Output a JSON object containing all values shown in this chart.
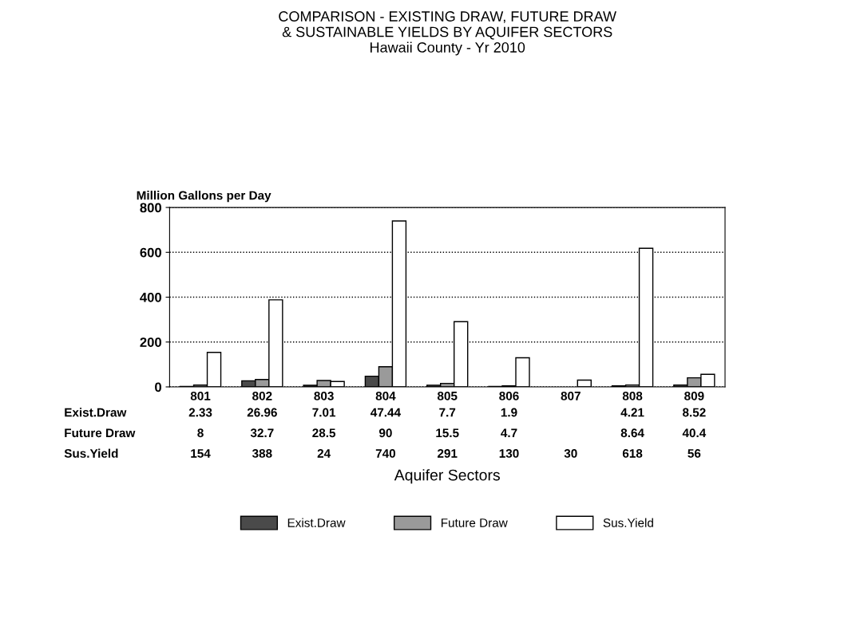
{
  "chart_data": {
    "type": "bar",
    "title": "COMPARISON - EXISTING DRAW, FUTURE DRAW\n& SUSTAINABLE YIELDS BY AQUIFER SECTORS",
    "subtitle": "Hawaii County - Yr 2010",
    "ylabel": "Million Gallons per Day",
    "xlabel": "Aquifer Sectors",
    "categories": [
      "801",
      "802",
      "803",
      "804",
      "805",
      "806",
      "807",
      "808",
      "809"
    ],
    "series": [
      {
        "name": "Exist.Draw",
        "color": "#4a4a4a",
        "values": [
          2.33,
          26.96,
          7.01,
          47.44,
          7.7,
          1.9,
          null,
          4.21,
          8.52
        ]
      },
      {
        "name": "Future Draw",
        "color": "#9a9a9a",
        "values": [
          8,
          32.7,
          28.5,
          90,
          15.5,
          4.7,
          null,
          8.64,
          40.4
        ]
      },
      {
        "name": "Sus.Yield",
        "color": "#ffffff",
        "values": [
          154,
          388,
          24,
          740,
          291,
          130,
          30,
          618,
          56
        ]
      }
    ],
    "ylim": [
      0,
      800
    ],
    "yticks": [
      0,
      200,
      400,
      600,
      800
    ],
    "grid": "y",
    "legend": "bottom",
    "data_labels": true
  }
}
